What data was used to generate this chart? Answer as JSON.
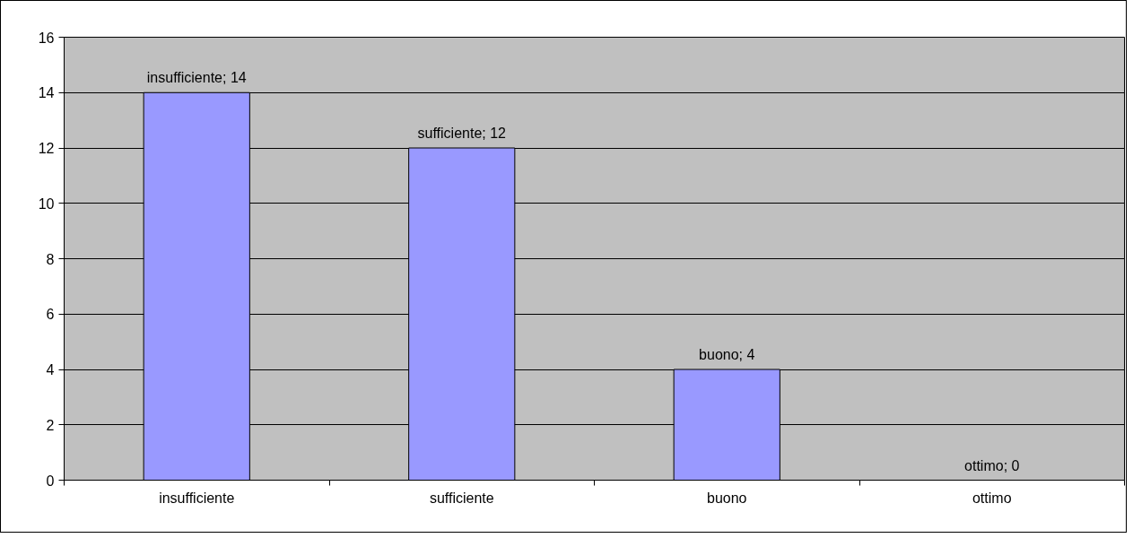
{
  "chart_data": {
    "type": "bar",
    "categories": [
      "insufficiente",
      "sufficiente",
      "buono",
      "ottimo"
    ],
    "values": [
      14,
      12,
      4,
      0
    ],
    "value_labels": [
      "insufficiente; 14",
      "sufficiente; 12",
      "buono; 4",
      "ottimo; 0"
    ],
    "color": "#9999ff",
    "ylim": [
      0,
      16
    ],
    "yticks": [
      0,
      2,
      4,
      6,
      8,
      10,
      12,
      14,
      16
    ],
    "grid": "y"
  }
}
